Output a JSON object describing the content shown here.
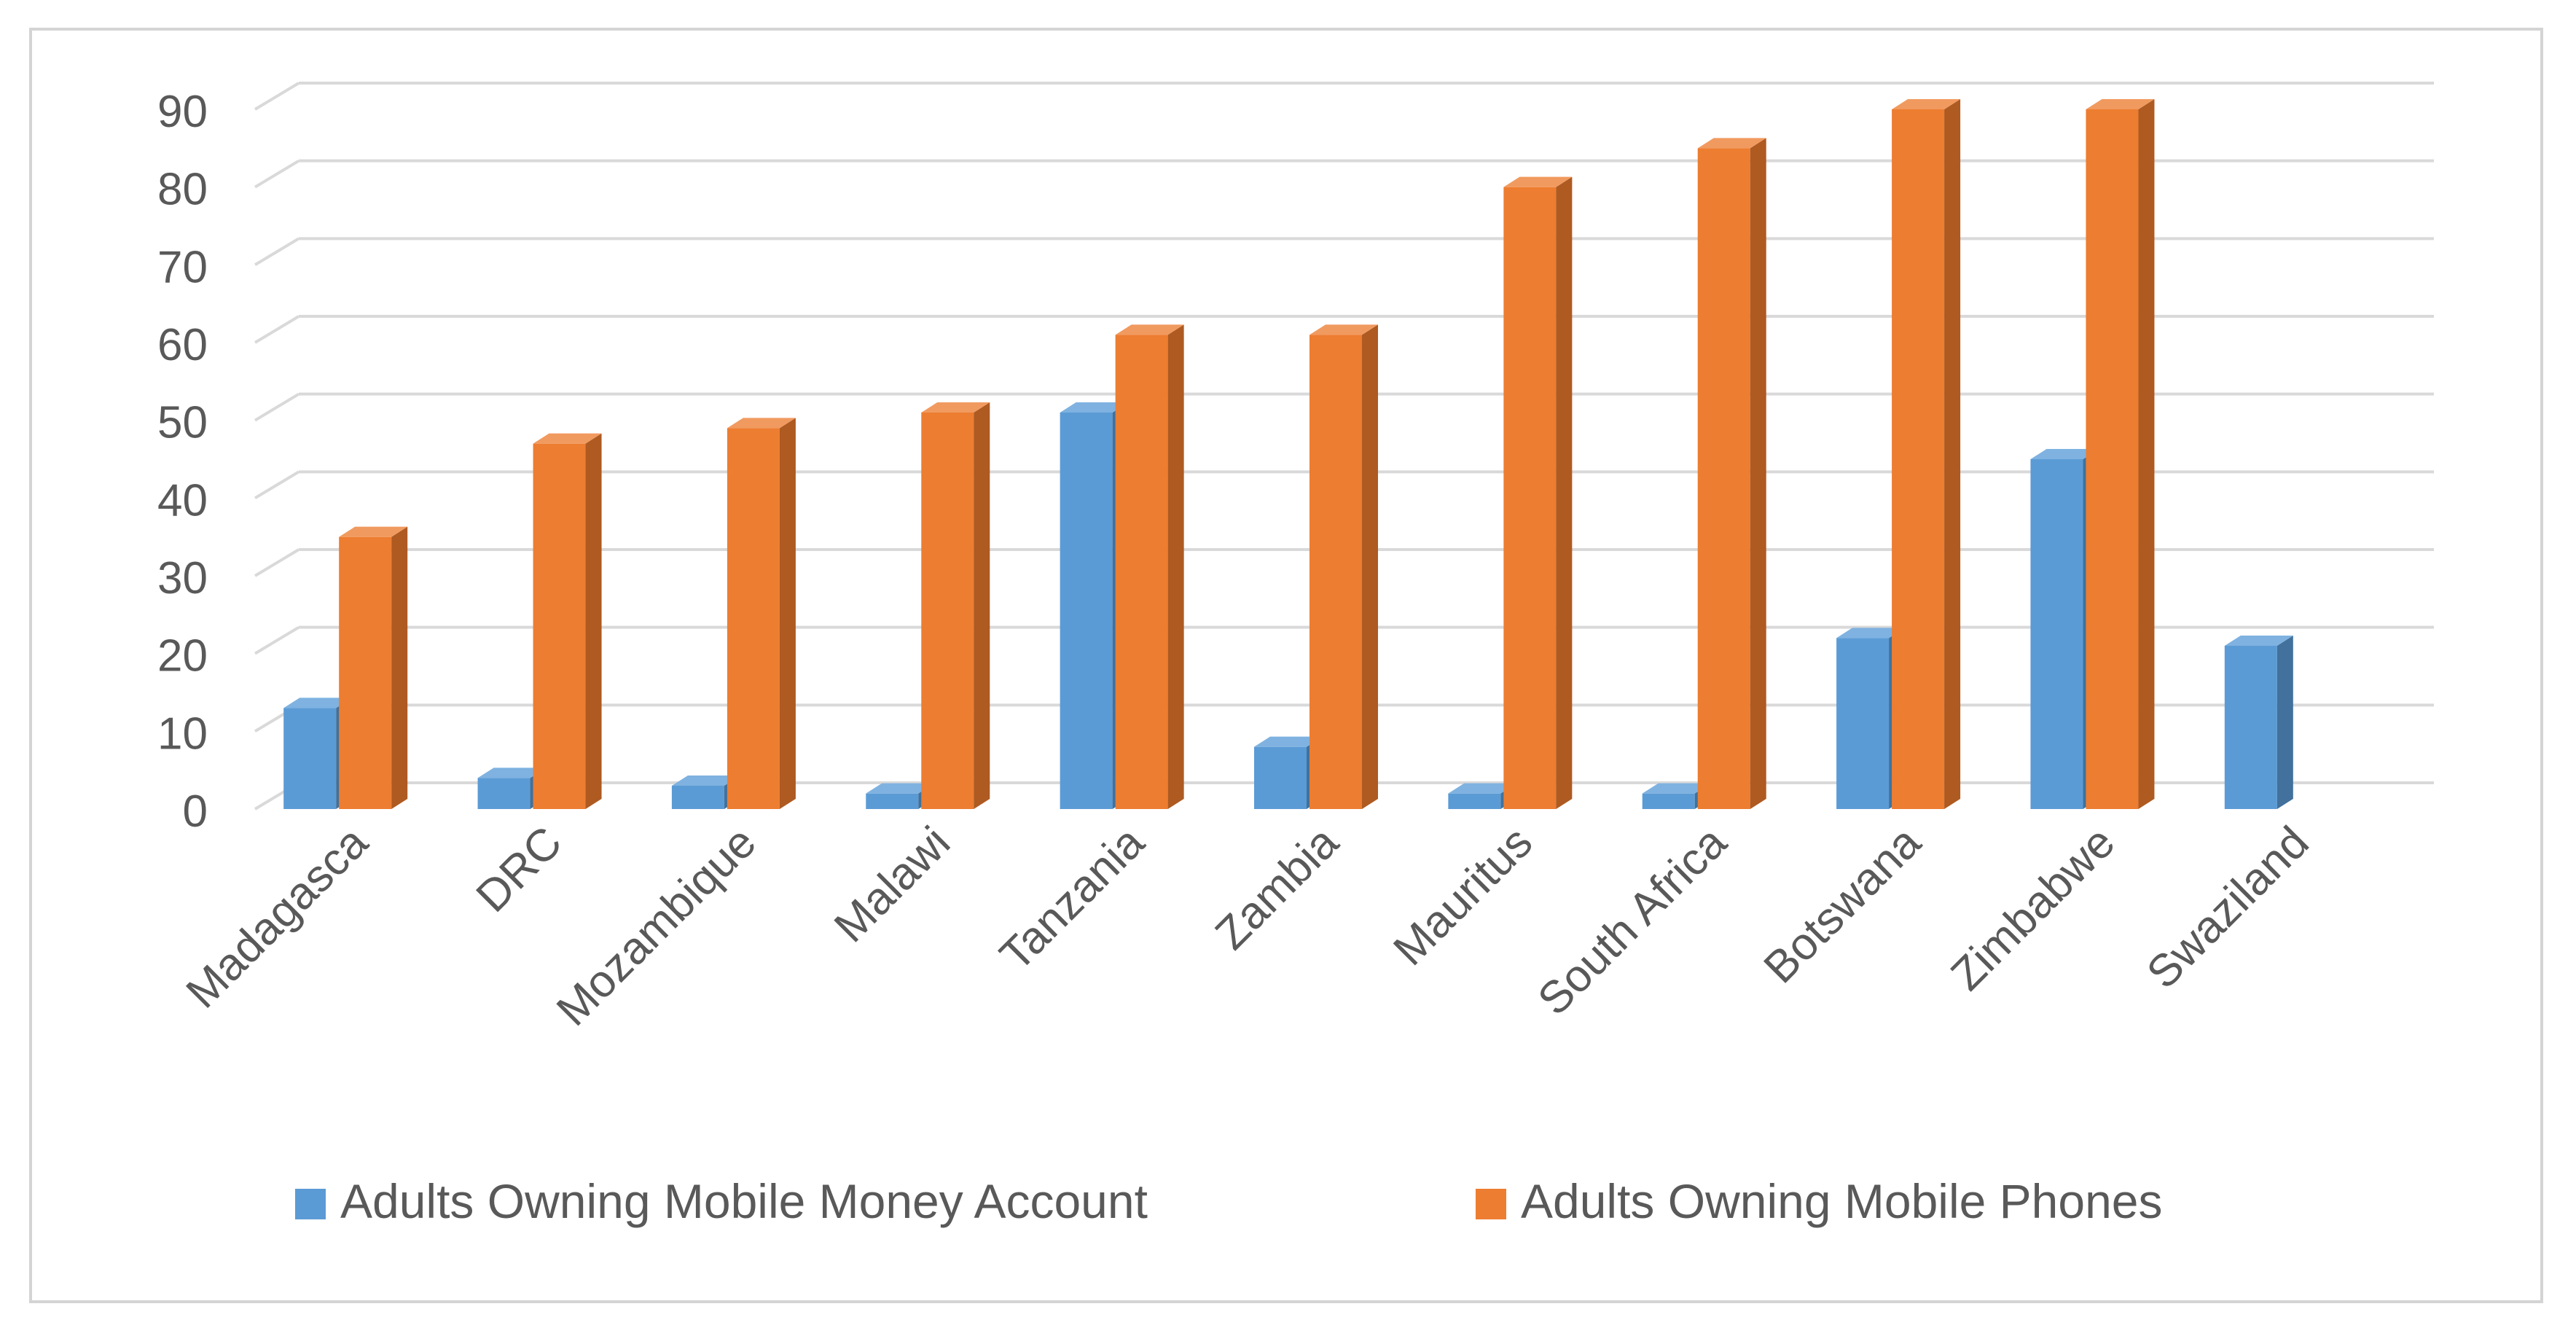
{
  "chart_data": {
    "type": "bar",
    "style": "3d-clustered-column",
    "title": "",
    "xlabel": "",
    "ylabel": "",
    "ylim": [
      0,
      90
    ],
    "yticks": [
      0,
      10,
      20,
      30,
      40,
      50,
      60,
      70,
      80,
      90
    ],
    "grid": true,
    "legend_position": "bottom",
    "categories": [
      "Madagasca",
      "DRC",
      "Mozambique",
      "Malawi",
      "Tanzania",
      "Zambia",
      "Mauritus",
      "South Africa",
      "Botswana",
      "Zimbabwe",
      "Swaziland"
    ],
    "series": [
      {
        "name": "Adults Owning Mobile Money Account",
        "color": "#5b9bd5",
        "side_color": "#41719c",
        "top_color": "#7fb2e0",
        "values": [
          13,
          4,
          3,
          2,
          51,
          8,
          2,
          2,
          22,
          45,
          21
        ]
      },
      {
        "name": "Adults Owning Mobile Phones",
        "color": "#ed7d31",
        "side_color": "#ae5a21",
        "top_color": "#f19a5f",
        "values": [
          35,
          47,
          49,
          51,
          61,
          61,
          80,
          85,
          90,
          90,
          0
        ]
      }
    ]
  }
}
